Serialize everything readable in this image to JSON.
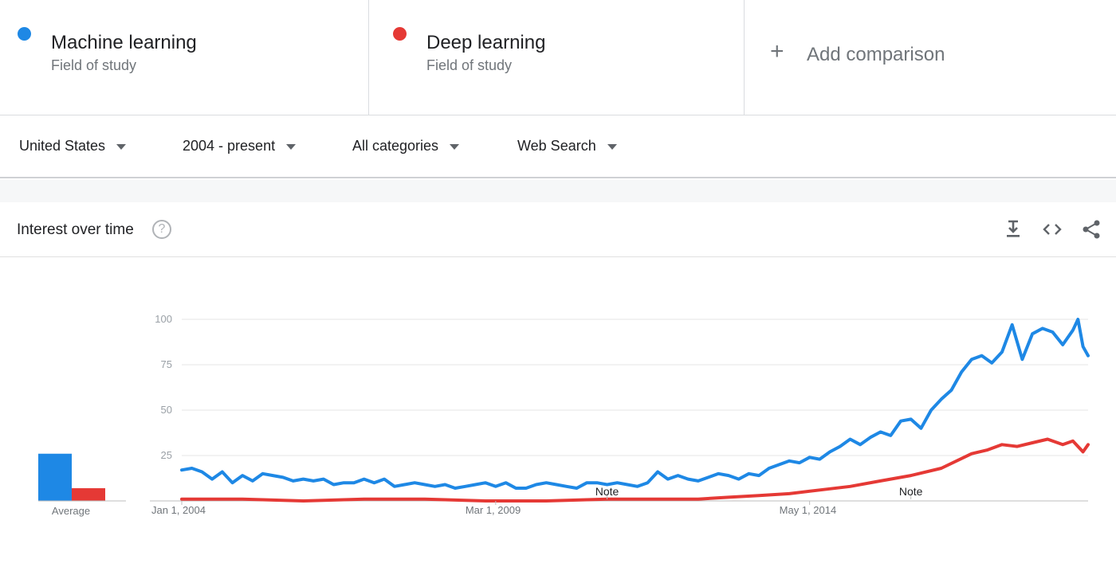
{
  "terms": [
    {
      "name": "Machine learning",
      "sub": "Field of study",
      "color": "#1e88e5"
    },
    {
      "name": "Deep learning",
      "sub": "Field of study",
      "color": "#e53935"
    }
  ],
  "add_comparison": {
    "label": "Add comparison",
    "icon": "plus-icon"
  },
  "filters": {
    "region": "United States",
    "time": "2004 - present",
    "category": "All categories",
    "search_type": "Web Search"
  },
  "card": {
    "title": "Interest over time",
    "help_icon": "?",
    "tools": [
      "download-icon",
      "embed-icon",
      "share-icon"
    ]
  },
  "chart_data": {
    "type": "line",
    "x_range": [
      "2004-01",
      "2018-12"
    ],
    "x_ticks": [
      "Jan 1, 2004",
      "Mar 1, 2009",
      "May 1, 2014"
    ],
    "y_ticks": [
      "100",
      "75",
      "50",
      "25"
    ],
    "ylim": [
      0,
      100
    ],
    "grid": true,
    "notes": [
      {
        "label": "Note",
        "date": "2011-01"
      },
      {
        "label": "Note",
        "date": "2016-01"
      }
    ],
    "average_label": "Average",
    "averages": [
      {
        "term": "Machine learning",
        "value": 26
      },
      {
        "term": "Deep learning",
        "value": 7
      }
    ],
    "series": [
      {
        "name": "Machine learning",
        "color": "#1e88e5",
        "points": [
          [
            "2004-01",
            17
          ],
          [
            "2004-03",
            18
          ],
          [
            "2004-05",
            16
          ],
          [
            "2004-07",
            12
          ],
          [
            "2004-09",
            16
          ],
          [
            "2004-11",
            10
          ],
          [
            "2005-01",
            14
          ],
          [
            "2005-03",
            11
          ],
          [
            "2005-05",
            15
          ],
          [
            "2005-07",
            14
          ],
          [
            "2005-09",
            13
          ],
          [
            "2005-11",
            11
          ],
          [
            "2006-01",
            12
          ],
          [
            "2006-03",
            11
          ],
          [
            "2006-05",
            12
          ],
          [
            "2006-07",
            9
          ],
          [
            "2006-09",
            10
          ],
          [
            "2006-11",
            10
          ],
          [
            "2007-01",
            12
          ],
          [
            "2007-03",
            10
          ],
          [
            "2007-05",
            12
          ],
          [
            "2007-07",
            8
          ],
          [
            "2007-09",
            9
          ],
          [
            "2007-11",
            10
          ],
          [
            "2008-01",
            9
          ],
          [
            "2008-03",
            8
          ],
          [
            "2008-05",
            9
          ],
          [
            "2008-07",
            7
          ],
          [
            "2008-09",
            8
          ],
          [
            "2008-11",
            9
          ],
          [
            "2009-01",
            10
          ],
          [
            "2009-03",
            8
          ],
          [
            "2009-05",
            10
          ],
          [
            "2009-07",
            7
          ],
          [
            "2009-09",
            7
          ],
          [
            "2009-11",
            9
          ],
          [
            "2010-01",
            10
          ],
          [
            "2010-03",
            9
          ],
          [
            "2010-05",
            8
          ],
          [
            "2010-07",
            7
          ],
          [
            "2010-09",
            10
          ],
          [
            "2010-11",
            10
          ],
          [
            "2011-01",
            9
          ],
          [
            "2011-03",
            10
          ],
          [
            "2011-05",
            9
          ],
          [
            "2011-07",
            8
          ],
          [
            "2011-09",
            10
          ],
          [
            "2011-11",
            16
          ],
          [
            "2012-01",
            12
          ],
          [
            "2012-03",
            14
          ],
          [
            "2012-05",
            12
          ],
          [
            "2012-07",
            11
          ],
          [
            "2012-09",
            13
          ],
          [
            "2012-11",
            15
          ],
          [
            "2013-01",
            14
          ],
          [
            "2013-03",
            12
          ],
          [
            "2013-05",
            15
          ],
          [
            "2013-07",
            14
          ],
          [
            "2013-09",
            18
          ],
          [
            "2013-11",
            20
          ],
          [
            "2014-01",
            22
          ],
          [
            "2014-03",
            21
          ],
          [
            "2014-05",
            24
          ],
          [
            "2014-07",
            23
          ],
          [
            "2014-09",
            27
          ],
          [
            "2014-11",
            30
          ],
          [
            "2015-01",
            34
          ],
          [
            "2015-03",
            31
          ],
          [
            "2015-05",
            35
          ],
          [
            "2015-07",
            38
          ],
          [
            "2015-09",
            36
          ],
          [
            "2015-11",
            44
          ],
          [
            "2016-01",
            45
          ],
          [
            "2016-03",
            40
          ],
          [
            "2016-05",
            50
          ],
          [
            "2016-07",
            56
          ],
          [
            "2016-09",
            61
          ],
          [
            "2016-11",
            71
          ],
          [
            "2017-01",
            78
          ],
          [
            "2017-03",
            80
          ],
          [
            "2017-05",
            76
          ],
          [
            "2017-07",
            82
          ],
          [
            "2017-09",
            97
          ],
          [
            "2017-11",
            78
          ],
          [
            "2018-01",
            92
          ],
          [
            "2018-03",
            95
          ],
          [
            "2018-05",
            93
          ],
          [
            "2018-07",
            86
          ],
          [
            "2018-09",
            94
          ],
          [
            "2018-10",
            100
          ],
          [
            "2018-11",
            85
          ],
          [
            "2018-12",
            80
          ]
        ]
      },
      {
        "name": "Deep learning",
        "color": "#e53935",
        "points": [
          [
            "2004-01",
            1
          ],
          [
            "2005-01",
            1
          ],
          [
            "2006-01",
            0
          ],
          [
            "2007-01",
            1
          ],
          [
            "2008-01",
            1
          ],
          [
            "2009-01",
            0
          ],
          [
            "2010-01",
            0
          ],
          [
            "2011-01",
            1
          ],
          [
            "2012-01",
            1
          ],
          [
            "2012-07",
            1
          ],
          [
            "2013-01",
            2
          ],
          [
            "2013-07",
            3
          ],
          [
            "2014-01",
            4
          ],
          [
            "2014-07",
            6
          ],
          [
            "2015-01",
            8
          ],
          [
            "2015-07",
            11
          ],
          [
            "2016-01",
            14
          ],
          [
            "2016-07",
            18
          ],
          [
            "2017-01",
            26
          ],
          [
            "2017-04",
            28
          ],
          [
            "2017-07",
            31
          ],
          [
            "2017-10",
            30
          ],
          [
            "2018-01",
            32
          ],
          [
            "2018-04",
            34
          ],
          [
            "2018-07",
            31
          ],
          [
            "2018-09",
            33
          ],
          [
            "2018-11",
            27
          ],
          [
            "2018-12",
            31
          ]
        ]
      }
    ]
  }
}
